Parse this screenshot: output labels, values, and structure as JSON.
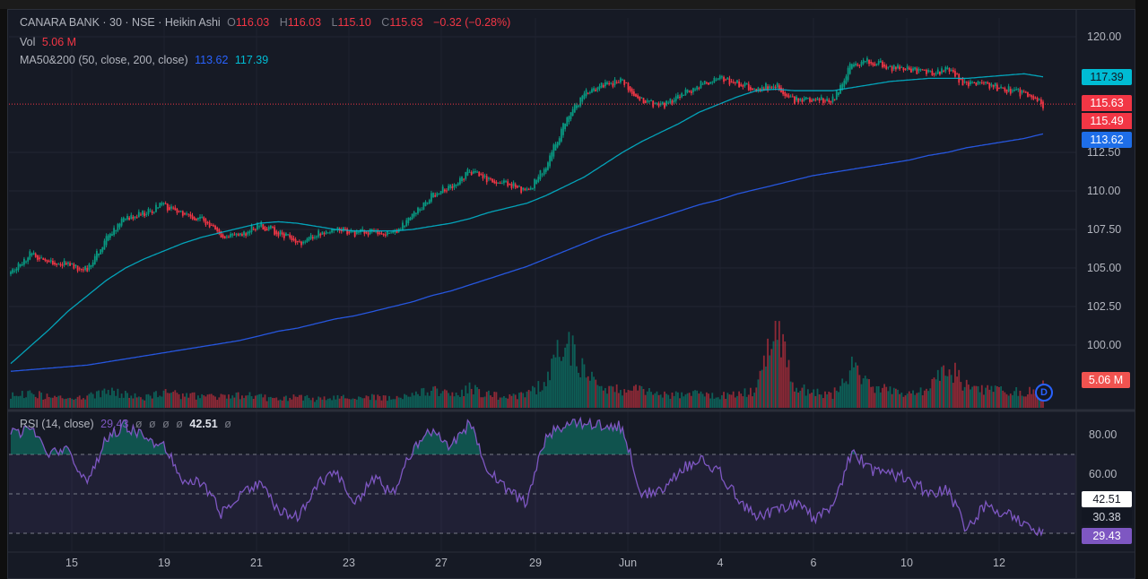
{
  "legend": {
    "symbol": "CANARA BANK · 30 · NSE · Heikin Ashi",
    "o_label": "O",
    "o": "116.03",
    "h_label": "H",
    "h": "116.03",
    "l_label": "L",
    "l": "115.10",
    "c_label": "C",
    "c": "115.63",
    "change": "−0.32 (−0.28%)",
    "vol_label": "Vol",
    "vol": "5.06 M",
    "ma_label": "MA50&200 (50, close, 200, close)",
    "ma200": "113.62",
    "ma50": "117.39",
    "rsi_label": "RSI (14, close)",
    "rsi": "29.43",
    "rsi_na": "ø",
    "rsi_ma": "42.51"
  },
  "price_tags": {
    "ma50": "117.39",
    "last": "115.63",
    "prev": "115.49",
    "ma200": "113.62",
    "volume": "5.06 M",
    "rsi_ma": "42.51",
    "rsi_mid": "30.38",
    "rsi": "29.43"
  },
  "d_badge": "D",
  "colors": {
    "up": "#089981",
    "down": "#f23645",
    "ma50": "#00bcd4",
    "ma200": "#2962ff",
    "rsi": "#7e57c2",
    "bg": "#161a25"
  },
  "chart_data": [
    {
      "type": "candlestick",
      "title": "CANARA BANK · 30 · NSE · Heikin Ashi",
      "y_ticks": [
        "120.00",
        "112.50",
        "110.00",
        "107.50",
        "105.00",
        "102.50",
        "100.00"
      ],
      "ylim": [
        97.5,
        121.2
      ],
      "x_ticks": [
        "15",
        "19",
        "21",
        "23",
        "27",
        "29",
        "Jun",
        "4",
        "6",
        "10",
        "12"
      ],
      "close_approx": [
        104.6,
        105.9,
        105.5,
        105.2,
        104.9,
        107.0,
        108.3,
        108.5,
        109.1,
        108.4,
        108.1,
        107.1,
        107.1,
        107.8,
        107.3,
        106.6,
        107.2,
        107.7,
        107.2,
        107.4,
        107.2,
        108.3,
        109.7,
        110.3,
        111.3,
        110.6,
        110.5,
        109.9,
        111.6,
        114.5,
        116.3,
        116.9,
        117.1,
        115.9,
        115.5,
        116.1,
        116.9,
        117.3,
        117.0,
        116.6,
        116.9,
        115.9,
        116.0,
        115.9,
        118.3,
        118.4,
        118.0,
        117.9,
        117.7,
        117.8,
        116.9,
        116.9,
        116.6,
        116.3,
        115.6
      ],
      "series": [
        {
          "name": "MA50",
          "values": [
            98.8,
            99.9,
            101.0,
            102.2,
            103.2,
            104.2,
            105.0,
            105.6,
            106.1,
            106.6,
            107.0,
            107.3,
            107.6,
            107.9,
            108.0,
            107.9,
            107.7,
            107.5,
            107.4,
            107.4,
            107.4,
            107.5,
            107.7,
            107.9,
            108.2,
            108.6,
            108.9,
            109.2,
            109.7,
            110.3,
            110.9,
            111.7,
            112.5,
            113.2,
            113.8,
            114.4,
            115.1,
            115.6,
            116.1,
            116.5,
            116.6,
            116.5,
            116.5,
            116.5,
            116.7,
            116.9,
            117.1,
            117.2,
            117.3,
            117.3,
            117.3,
            117.4,
            117.5,
            117.6,
            117.4
          ]
        },
        {
          "name": "MA200",
          "values": [
            98.3,
            98.4,
            98.5,
            98.6,
            98.7,
            98.9,
            99.1,
            99.3,
            99.5,
            99.7,
            99.9,
            100.1,
            100.3,
            100.6,
            100.9,
            101.1,
            101.4,
            101.7,
            101.9,
            102.2,
            102.5,
            102.8,
            103.2,
            103.5,
            103.9,
            104.3,
            104.7,
            105.1,
            105.6,
            106.1,
            106.6,
            107.1,
            107.5,
            107.9,
            108.3,
            108.7,
            109.1,
            109.4,
            109.8,
            110.1,
            110.4,
            110.7,
            111.0,
            111.2,
            111.4,
            111.6,
            111.8,
            112.0,
            112.3,
            112.5,
            112.8,
            113.0,
            113.2,
            113.4,
            113.7
          ]
        }
      ]
    },
    {
      "type": "bar",
      "title": "Vol",
      "unit": "M",
      "values": [
        3,
        3.5,
        2.5,
        2,
        2.5,
        4,
        3,
        2.5,
        3.5,
        3,
        2.5,
        2.5,
        3,
        2.5,
        2,
        2.5,
        2,
        2.5,
        2,
        2.5,
        2,
        3,
        4,
        3,
        4.5,
        3,
        2.5,
        3,
        6,
        16,
        8,
        5,
        4,
        4.5,
        3,
        3,
        3.5,
        3,
        3,
        4,
        19,
        5,
        3.5,
        3,
        9,
        5,
        4,
        3.5,
        4,
        10,
        5,
        4,
        4,
        3.5,
        5.06
      ]
    },
    {
      "type": "line",
      "title": "RSI (14, close)",
      "y_ticks": [
        "80.00",
        "60.00"
      ],
      "bands": [
        30,
        50,
        70
      ],
      "values": [
        80,
        83,
        70,
        72,
        55,
        78,
        85,
        78,
        75,
        58,
        56,
        40,
        50,
        55,
        42,
        38,
        55,
        60,
        45,
        58,
        50,
        72,
        82,
        74,
        86,
        62,
        52,
        45,
        80,
        85,
        86,
        85,
        84,
        50,
        52,
        62,
        68,
        62,
        48,
        38,
        42,
        45,
        38,
        42,
        72,
        62,
        60,
        58,
        50,
        52,
        32,
        45,
        40,
        35,
        29.43
      ]
    }
  ]
}
